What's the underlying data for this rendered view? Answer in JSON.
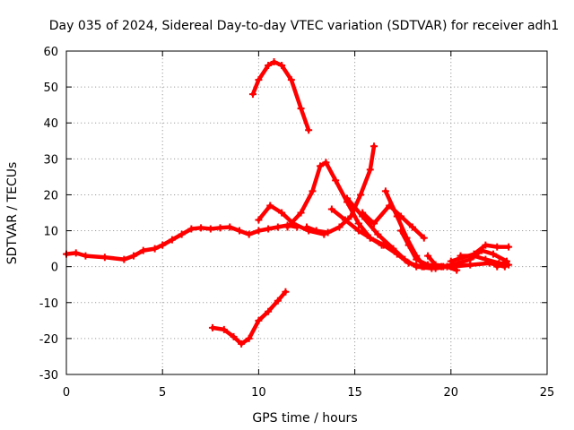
{
  "chart_data": {
    "type": "line",
    "title": "Day 035 of 2024, Sidereal Day-to-day VTEC variation (SDTVAR) for receiver adh1",
    "xlabel": "GPS time / hours",
    "ylabel": "SDTVAR / TECUs",
    "xlim": [
      0,
      25
    ],
    "ylim": [
      -30,
      60
    ],
    "xticks": [
      "0",
      "5",
      "10",
      "15",
      "20",
      "25"
    ],
    "yticks": [
      "-30",
      "-20",
      "-10",
      "0",
      "10",
      "20",
      "30",
      "40",
      "50",
      "60"
    ],
    "grid": true,
    "legend": "none",
    "series_color": "#ff0000",
    "series": [
      {
        "name": "track-main-daytime",
        "points": [
          [
            0,
            3.5
          ],
          [
            0.5,
            3.8
          ],
          [
            1,
            3
          ],
          [
            2,
            2.6
          ],
          [
            3,
            2
          ],
          [
            3.5,
            3
          ],
          [
            4,
            4.5
          ],
          [
            4.6,
            5
          ],
          [
            5,
            6
          ],
          [
            5.5,
            7.5
          ],
          [
            6,
            9
          ],
          [
            6.5,
            10.5
          ],
          [
            7,
            10.8
          ],
          [
            7.5,
            10.5
          ],
          [
            8,
            10.8
          ],
          [
            8.5,
            11
          ],
          [
            9,
            10
          ],
          [
            9.5,
            9
          ],
          [
            10,
            10
          ],
          [
            10.5,
            10.5
          ],
          [
            11,
            11
          ],
          [
            11.5,
            11.5
          ],
          [
            12,
            11
          ]
        ]
      },
      {
        "name": "track-peak-56",
        "points": [
          [
            9.7,
            48
          ],
          [
            10,
            52
          ],
          [
            10.5,
            56
          ],
          [
            10.8,
            57
          ],
          [
            11.2,
            56
          ],
          [
            11.7,
            52
          ],
          [
            12.2,
            44
          ],
          [
            12.6,
            38
          ]
        ]
      },
      {
        "name": "track-negative-dip",
        "points": [
          [
            7.6,
            -17
          ],
          [
            8.2,
            -17.5
          ],
          [
            8.7,
            -19.5
          ],
          [
            9.1,
            -21.5
          ],
          [
            9.5,
            -20
          ],
          [
            10,
            -15
          ],
          [
            10.5,
            -12.5
          ],
          [
            11,
            -9.5
          ],
          [
            11.4,
            -7
          ]
        ]
      },
      {
        "name": "track-peak-29",
        "points": [
          [
            11.5,
            11
          ],
          [
            12.2,
            15
          ],
          [
            12.8,
            21
          ],
          [
            13.2,
            28
          ],
          [
            13.5,
            29
          ],
          [
            14,
            24
          ],
          [
            14.6,
            18
          ],
          [
            15.2,
            12
          ],
          [
            15.8,
            8
          ],
          [
            16.4,
            6
          ]
        ]
      },
      {
        "name": "track-peak-34",
        "points": [
          [
            12.5,
            11
          ],
          [
            13,
            10
          ],
          [
            13.6,
            9.5
          ],
          [
            14.2,
            11
          ],
          [
            14.8,
            14
          ],
          [
            15.3,
            20
          ],
          [
            15.8,
            27
          ],
          [
            16,
            33.5
          ]
        ]
      },
      {
        "name": "track-from-10h",
        "points": [
          [
            10,
            13
          ],
          [
            10.6,
            17
          ],
          [
            11.2,
            15
          ],
          [
            11.8,
            12
          ],
          [
            12.6,
            10
          ],
          [
            13.4,
            9
          ]
        ]
      },
      {
        "name": "track-descent-a",
        "points": [
          [
            13.8,
            16
          ],
          [
            14.5,
            13
          ],
          [
            15.2,
            10
          ],
          [
            15.8,
            8
          ],
          [
            16.5,
            6
          ],
          [
            17.2,
            3.5
          ],
          [
            17.8,
            1
          ],
          [
            18.5,
            0
          ],
          [
            19.2,
            -0.5
          ],
          [
            19.8,
            0
          ]
        ]
      },
      {
        "name": "track-descent-b",
        "points": [
          [
            14.6,
            19
          ],
          [
            15.4,
            14
          ],
          [
            16.2,
            9
          ],
          [
            17,
            5
          ],
          [
            17.6,
            2
          ],
          [
            18.2,
            0
          ],
          [
            19,
            -0.5
          ]
        ]
      },
      {
        "name": "track-descent-c",
        "points": [
          [
            16.6,
            21
          ],
          [
            17.2,
            14
          ],
          [
            17.7,
            8
          ],
          [
            18.2,
            3
          ],
          [
            18.6,
            0
          ],
          [
            19.5,
            0
          ]
        ]
      },
      {
        "name": "track-descent-d",
        "points": [
          [
            15.4,
            15
          ],
          [
            16,
            12
          ],
          [
            16.8,
            17
          ],
          [
            17.4,
            14
          ],
          [
            18,
            11
          ],
          [
            18.6,
            8
          ]
        ]
      },
      {
        "name": "track-descent-e",
        "points": [
          [
            17.4,
            10
          ],
          [
            17.8,
            6
          ],
          [
            18.2,
            2
          ],
          [
            18.8,
            0.5
          ],
          [
            19.8,
            0
          ],
          [
            20.3,
            -1
          ]
        ]
      },
      {
        "name": "track-late-a",
        "points": [
          [
            18.8,
            3
          ],
          [
            19.2,
            0.5
          ],
          [
            20,
            0
          ],
          [
            21,
            0.5
          ],
          [
            22,
            1
          ],
          [
            22.8,
            0
          ]
        ]
      },
      {
        "name": "track-late-b",
        "points": [
          [
            20,
            1.5
          ],
          [
            20.6,
            2.5
          ],
          [
            21.2,
            3.5
          ],
          [
            21.8,
            6
          ],
          [
            22.4,
            5.5
          ],
          [
            23,
            5.5
          ]
        ]
      },
      {
        "name": "track-late-c",
        "points": [
          [
            19.6,
            0
          ],
          [
            20.4,
            1
          ],
          [
            21,
            2
          ],
          [
            21.6,
            4.5
          ],
          [
            22.2,
            3.5
          ],
          [
            22.9,
            1.5
          ],
          [
            22.4,
            0
          ]
        ]
      },
      {
        "name": "track-late-d",
        "points": [
          [
            20.5,
            3
          ],
          [
            21.2,
            3
          ],
          [
            21.8,
            2
          ],
          [
            22.5,
            1
          ],
          [
            23,
            0.5
          ]
        ]
      }
    ]
  }
}
